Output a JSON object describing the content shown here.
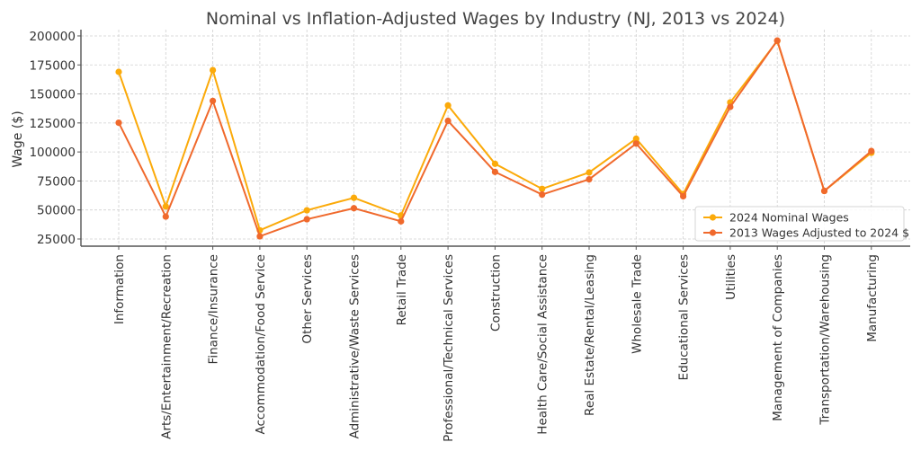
{
  "chart_data": {
    "type": "line",
    "title": "Nominal vs Inflation-Adjusted Wages by Industry (NJ, 2013 vs 2024)",
    "xlabel": "",
    "ylabel": "Wage ($)",
    "ylim": [
      18800,
      205400
    ],
    "yticks": [
      25000,
      50000,
      75000,
      100000,
      125000,
      150000,
      175000,
      200000
    ],
    "ytick_labels": [
      "25000",
      "50000",
      "75000",
      "100000",
      "125000",
      "150000",
      "175000",
      "200000"
    ],
    "grid": true,
    "legend_position": "lower-right",
    "categories": [
      "Information",
      "Arts/Entertainment/Recreation",
      "Finance/Insurance",
      "Accommodation/Food Service",
      "Other Services",
      "Administrative/Waste Services",
      "Retail Trade",
      "Professional/Technical Services",
      "Construction",
      "Health Care/Social Assistance",
      "Real Estate/Rental/Leasing",
      "Wholesale Trade",
      "Educational Services",
      "Utilities",
      "Management of Companies",
      "Transportation/Warehousing",
      "Manufacturing"
    ],
    "series": [
      {
        "name": "2024 Nominal Wages",
        "color": "#FBAA0A",
        "values": [
          169000,
          53000,
          170500,
          32500,
          49700,
          60500,
          45300,
          140100,
          89800,
          68200,
          82300,
          111400,
          63800,
          142700,
          195600,
          66400,
          99300
        ]
      },
      {
        "name": "2013 Wages Adjusted to 2024 $",
        "color": "#F0692C",
        "values": [
          125200,
          44300,
          144000,
          27300,
          42000,
          51500,
          40200,
          126800,
          82800,
          63300,
          76400,
          107200,
          61800,
          138800,
          196000,
          66400,
          100800
        ]
      }
    ]
  }
}
